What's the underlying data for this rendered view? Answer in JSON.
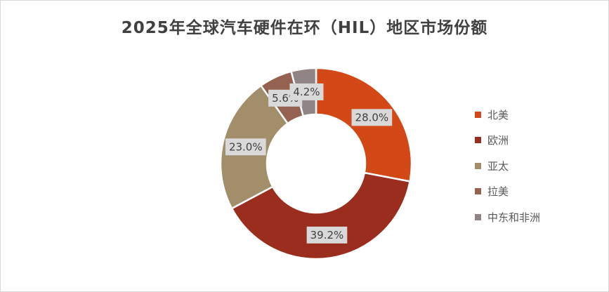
{
  "chart_data": {
    "type": "donut",
    "title": "2025年全球汽车硬件在环（HIL）地区市场份额",
    "categories": [
      "北美",
      "欧洲",
      "亚太",
      "拉美",
      "中东和非洲"
    ],
    "values": [
      28.0,
      39.2,
      23.0,
      5.6,
      4.2
    ],
    "data_labels": [
      "28.0%",
      "39.2%",
      "23.0%",
      "5.6%",
      "4.2%"
    ],
    "colors": [
      "#D34817",
      "#9B2D1F",
      "#A28E6A",
      "#956251",
      "#918485"
    ],
    "legend_position": "right"
  }
}
